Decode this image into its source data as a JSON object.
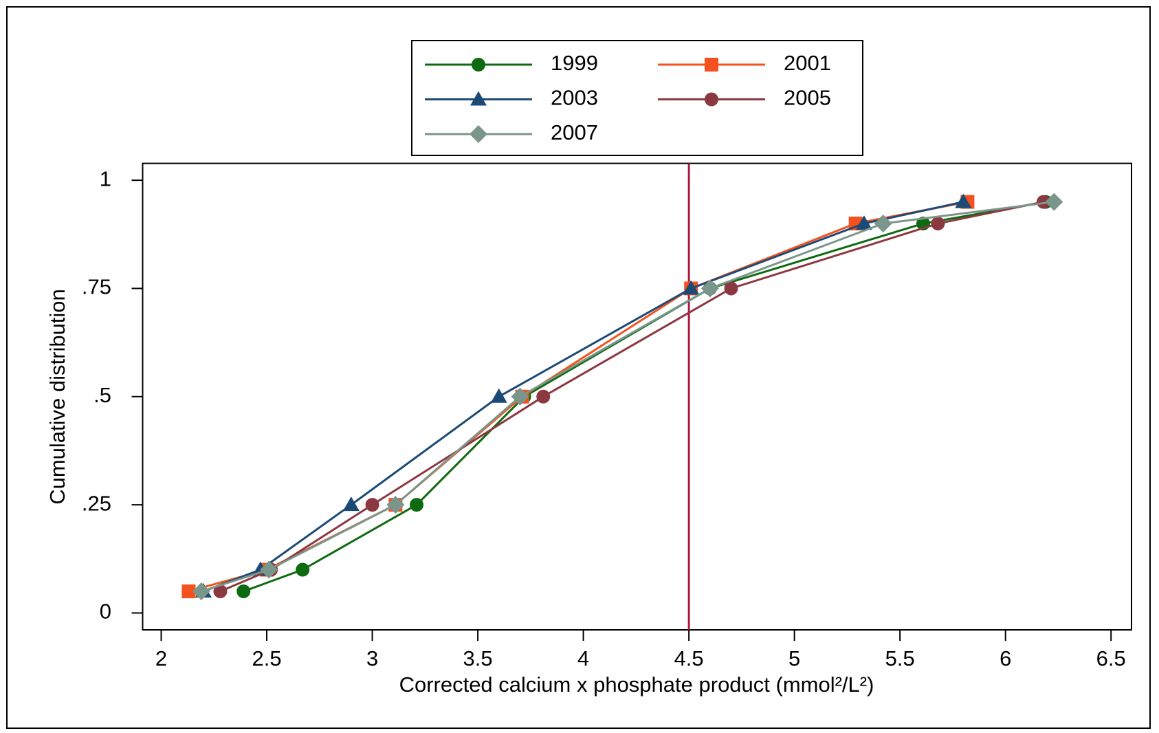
{
  "chart_data": {
    "type": "line",
    "xlabel": "Corrected calcium x phosphate product (mmol²/L²)",
    "ylabel": "Cumulative distribution",
    "xlim": [
      1.912,
      6.597
    ],
    "ylim": [
      -0.039,
      1.039
    ],
    "xticks": [
      2,
      2.5,
      3,
      3.5,
      4,
      4.5,
      5,
      5.5,
      6,
      6.5
    ],
    "yticks": [
      0,
      {
        "value": 0.25,
        "label": ".25"
      },
      {
        "value": 0.5,
        "label": ".5"
      },
      {
        "value": 0.75,
        "label": ".75"
      },
      1
    ],
    "vline": 4.5,
    "vline_color": "#b0173a",
    "series": [
      {
        "name": "1999",
        "color": "#0e6a10",
        "marker": "circle",
        "x": [
          2.39,
          2.67,
          3.21,
          3.72,
          4.6,
          5.61,
          6.19
        ],
        "values": [
          0.05,
          0.1,
          0.25,
          0.5,
          0.75,
          0.9,
          0.95
        ]
      },
      {
        "name": "2001",
        "color": "#f4511e",
        "marker": "square",
        "x": [
          2.13,
          2.5,
          3.11,
          3.71,
          4.51,
          5.29,
          5.82
        ],
        "values": [
          0.05,
          0.1,
          0.25,
          0.5,
          0.75,
          0.9,
          0.95
        ]
      },
      {
        "name": "2003",
        "color": "#1c4a76",
        "marker": "triangle",
        "x": [
          2.2,
          2.47,
          2.9,
          3.6,
          4.51,
          5.33,
          5.8
        ],
        "values": [
          0.05,
          0.1,
          0.25,
          0.5,
          0.75,
          0.9,
          0.95
        ]
      },
      {
        "name": "2005",
        "color": "#8c3840",
        "marker": "circle",
        "x": [
          2.28,
          2.52,
          3.0,
          3.81,
          4.7,
          5.68,
          6.18
        ],
        "values": [
          0.05,
          0.1,
          0.25,
          0.5,
          0.75,
          0.9,
          0.95
        ]
      },
      {
        "name": "2007",
        "color": "#7a968a",
        "marker": "diamond",
        "x": [
          2.19,
          2.51,
          3.11,
          3.7,
          4.6,
          5.42,
          6.23
        ],
        "values": [
          0.05,
          0.1,
          0.25,
          0.5,
          0.75,
          0.9,
          0.95
        ]
      }
    ]
  }
}
